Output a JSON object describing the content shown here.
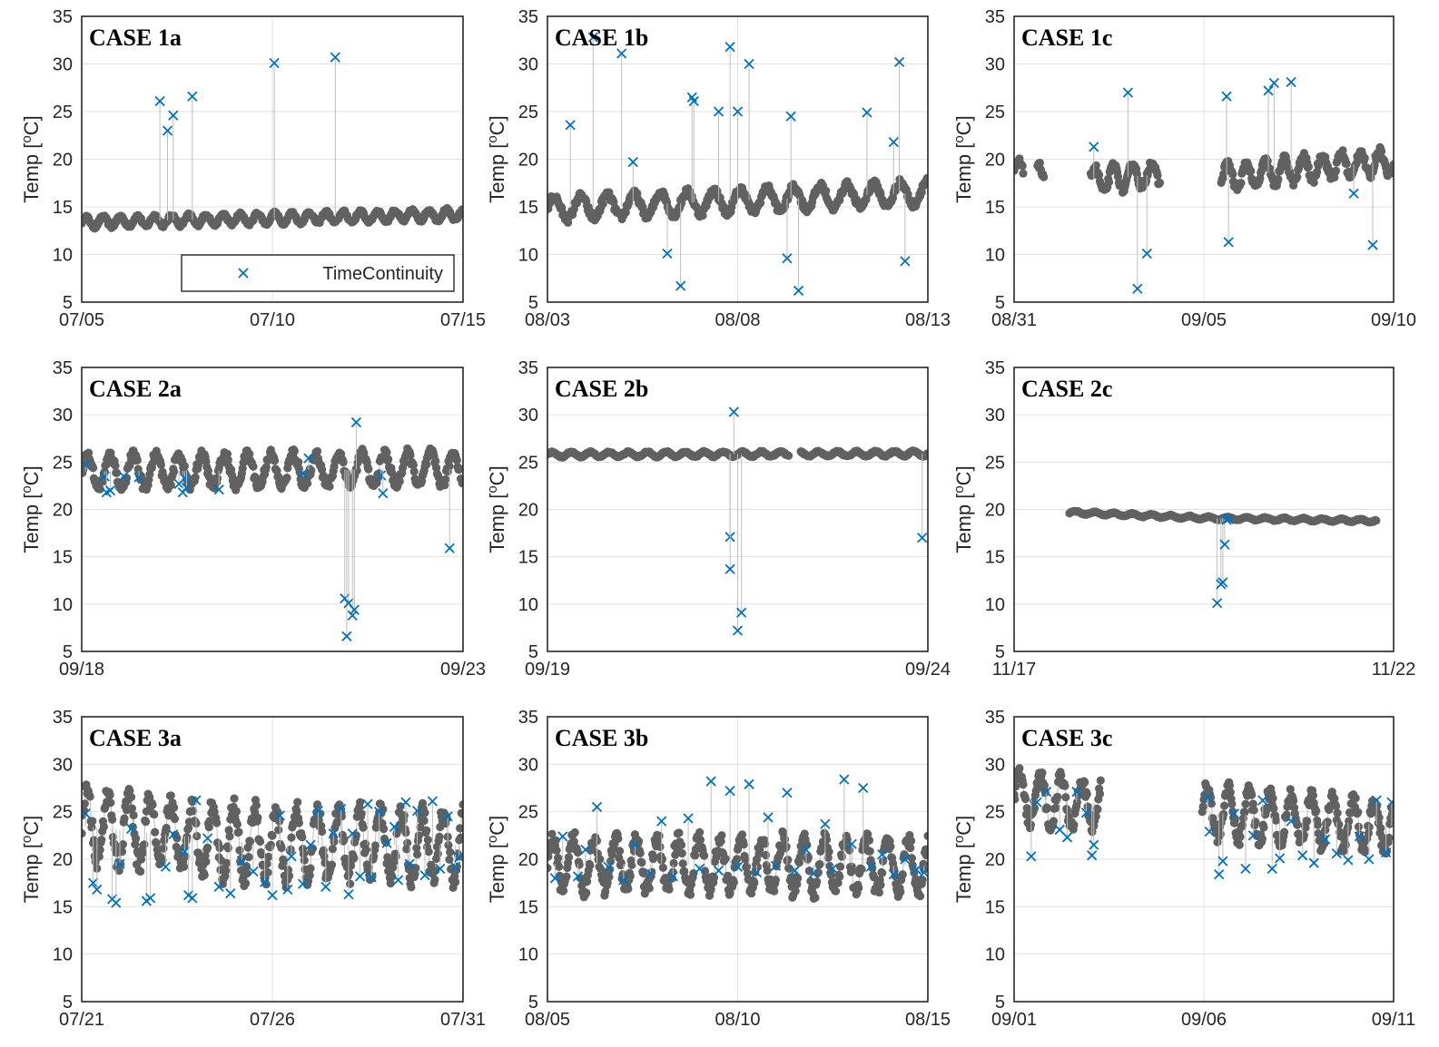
{
  "figure": {
    "ylabel_main": "Temp [",
    "ylabel_sup": "o",
    "ylabel_tail": "C]",
    "legend": {
      "label": "TimeContinuity",
      "marker": "×",
      "panel": "CASE 1a",
      "placement": "bottom-right"
    }
  },
  "colors": {
    "normal": "#616161",
    "flagged": "#0072bd",
    "grid": "#e1e1e1",
    "stem": "#bdbdbd"
  },
  "chart_data": [
    {
      "type": "scatter",
      "title": "CASE 1a",
      "ylabel": "Temp [oC]",
      "xticks": [
        "07/05",
        "07/10",
        "07/15"
      ],
      "xlim": [
        0,
        10
      ],
      "ylim": [
        5,
        35
      ],
      "yticks": [
        5,
        10,
        15,
        20,
        25,
        30,
        35
      ],
      "grid": true,
      "base": [
        [
          0,
          13.4
        ],
        [
          10,
          14.2
        ]
      ],
      "base_amp": 0.55,
      "base_period": 0.45,
      "gaps": [],
      "series": [
        {
          "name": "TimeContinuity",
          "points": [
            [
              2.05,
              26.1
            ],
            [
              2.25,
              23.0
            ],
            [
              2.4,
              24.6
            ],
            [
              2.9,
              26.6
            ],
            [
              5.05,
              30.1
            ],
            [
              6.65,
              30.7
            ]
          ]
        }
      ]
    },
    {
      "type": "scatter",
      "title": "CASE 1b",
      "ylabel": "Temp [oC]",
      "xticks": [
        "08/03",
        "08/08",
        "08/13"
      ],
      "xlim": [
        0,
        10
      ],
      "ylim": [
        5,
        35
      ],
      "yticks": [
        5,
        10,
        15,
        20,
        25,
        30,
        35
      ],
      "grid": true,
      "base": [
        [
          0,
          14.8
        ],
        [
          10,
          16.5
        ]
      ],
      "base_amp": 1.2,
      "base_period": 0.7,
      "gaps": [],
      "series": [
        {
          "name": "TimeContinuity",
          "points": [
            [
              0.6,
              23.6
            ],
            [
              1.2,
              32.8
            ],
            [
              1.95,
              31.1
            ],
            [
              2.25,
              19.7
            ],
            [
              3.15,
              10.1
            ],
            [
              3.5,
              6.7
            ],
            [
              3.8,
              26.5
            ],
            [
              3.85,
              26.1
            ],
            [
              4.5,
              25.0
            ],
            [
              4.8,
              31.8
            ],
            [
              5.0,
              25.0
            ],
            [
              5.3,
              30.0
            ],
            [
              6.3,
              9.6
            ],
            [
              6.4,
              24.5
            ],
            [
              6.6,
              6.2
            ],
            [
              8.4,
              24.9
            ],
            [
              9.1,
              21.8
            ],
            [
              9.25,
              30.2
            ],
            [
              9.4,
              9.3
            ]
          ]
        }
      ]
    },
    {
      "type": "scatter",
      "title": "CASE 1c",
      "ylabel": "Temp [oC]",
      "xticks": [
        "08/31",
        "09/05",
        "09/10"
      ],
      "xlim": [
        0,
        10
      ],
      "ylim": [
        5,
        35
      ],
      "yticks": [
        5,
        10,
        15,
        20,
        25,
        30,
        35
      ],
      "grid": true,
      "base": [
        [
          0,
          18.5
        ],
        [
          2,
          17.8
        ],
        [
          4,
          18.5
        ],
        [
          6,
          18.2
        ],
        [
          8,
          19.2
        ],
        [
          10,
          19.8
        ]
      ],
      "base_amp": 1.3,
      "base_period": 0.5,
      "gaps": [
        [
          0.25,
          0.6
        ],
        [
          0.8,
          2.0
        ],
        [
          3.85,
          5.45
        ]
      ],
      "series": [
        {
          "name": "TimeContinuity",
          "points": [
            [
              2.1,
              21.3
            ],
            [
              3.0,
              27.0
            ],
            [
              3.25,
              6.4
            ],
            [
              3.5,
              10.1
            ],
            [
              5.6,
              26.6
            ],
            [
              5.65,
              11.3
            ],
            [
              6.7,
              27.2
            ],
            [
              6.85,
              28.0
            ],
            [
              7.3,
              28.1
            ],
            [
              8.95,
              16.4
            ],
            [
              9.45,
              11.0
            ]
          ]
        }
      ]
    },
    {
      "type": "scatter",
      "title": "CASE 2a",
      "ylabel": "Temp [oC]",
      "xticks": [
        "09/18",
        "09/23"
      ],
      "xlim": [
        0,
        10
      ],
      "ylim": [
        5,
        35
      ],
      "yticks": [
        5,
        10,
        15,
        20,
        25,
        30,
        35
      ],
      "grid": true,
      "base": [
        [
          0,
          24.0
        ],
        [
          10,
          24.3
        ]
      ],
      "base_amp": 1.7,
      "base_period": 0.6,
      "gaps": [],
      "series": [
        {
          "name": "TimeContinuity",
          "points": [
            [
              0.1,
              24.7
            ],
            [
              0.6,
              23.5
            ],
            [
              0.65,
              21.8
            ],
            [
              0.75,
              22.0
            ],
            [
              1.1,
              23.5
            ],
            [
              1.5,
              23.4
            ],
            [
              2.55,
              22.7
            ],
            [
              2.65,
              21.8
            ],
            [
              2.7,
              23.3
            ],
            [
              2.75,
              22.3
            ],
            [
              3.6,
              22.1
            ],
            [
              5.8,
              23.8
            ],
            [
              5.95,
              25.4
            ],
            [
              6.9,
              10.6
            ],
            [
              6.95,
              6.6
            ],
            [
              7.0,
              10.1
            ],
            [
              7.1,
              8.8
            ],
            [
              7.15,
              9.4
            ],
            [
              7.2,
              29.2
            ],
            [
              7.85,
              23.6
            ],
            [
              7.9,
              21.7
            ],
            [
              9.65,
              15.9
            ]
          ]
        }
      ]
    },
    {
      "type": "scatter",
      "title": "CASE 2b",
      "ylabel": "Temp [oC]",
      "xticks": [
        "09/19",
        "09/24"
      ],
      "xlim": [
        0,
        10
      ],
      "ylim": [
        5,
        35
      ],
      "yticks": [
        5,
        10,
        15,
        20,
        25,
        30,
        35
      ],
      "grid": true,
      "base": [
        [
          0,
          25.8
        ],
        [
          10,
          25.9
        ]
      ],
      "base_amp": 0.25,
      "base_period": 0.5,
      "gaps": [
        [
          6.35,
          6.65
        ]
      ],
      "series": [
        {
          "name": "TimeContinuity",
          "points": [
            [
              4.8,
              17.1
            ],
            [
              4.8,
              13.7
            ],
            [
              4.9,
              30.3
            ],
            [
              5.0,
              7.2
            ],
            [
              5.1,
              9.1
            ],
            [
              9.85,
              17.0
            ]
          ]
        }
      ]
    },
    {
      "type": "scatter",
      "title": "CASE 2c",
      "ylabel": "Temp [oC]",
      "xticks": [
        "11/17",
        "11/22"
      ],
      "xlim": [
        0,
        10
      ],
      "ylim": [
        5,
        35
      ],
      "yticks": [
        5,
        10,
        15,
        20,
        25,
        30,
        35
      ],
      "grid": true,
      "base": [
        [
          1.45,
          19.7
        ],
        [
          5.0,
          19.1
        ],
        [
          9.5,
          18.8
        ]
      ],
      "base_amp": 0.15,
      "base_period": 0.5,
      "gaps": [
        [
          0,
          1.45
        ],
        [
          9.55,
          10
        ]
      ],
      "series": [
        {
          "name": "TimeContinuity",
          "points": [
            [
              5.35,
              10.1
            ],
            [
              5.45,
              12.1
            ],
            [
              5.5,
              12.3
            ],
            [
              5.55,
              16.3
            ],
            [
              5.6,
              18.9
            ],
            [
              5.65,
              19.0
            ]
          ]
        }
      ]
    },
    {
      "type": "scatter",
      "title": "CASE 3a",
      "ylabel": "Temp [oC]",
      "xticks": [
        "07/21",
        "07/26",
        "07/31"
      ],
      "xlim": [
        0,
        10
      ],
      "ylim": [
        5,
        35
      ],
      "yticks": [
        5,
        10,
        15,
        20,
        25,
        30,
        35
      ],
      "grid": true,
      "base": [
        [
          0,
          23.5
        ],
        [
          5,
          21.5
        ],
        [
          10,
          21.5
        ]
      ],
      "base_amp": 3.6,
      "base_period": 0.55,
      "gaps": [],
      "series": [
        {
          "name": "TimeContinuity",
          "points": [
            [
              0.1,
              24.8
            ],
            [
              0.3,
              17.5
            ],
            [
              0.4,
              16.8
            ],
            [
              0.8,
              15.8
            ],
            [
              0.9,
              15.4
            ],
            [
              1.0,
              19.5
            ],
            [
              1.3,
              23.2
            ],
            [
              1.7,
              15.6
            ],
            [
              1.8,
              15.9
            ],
            [
              2.2,
              19.2
            ],
            [
              2.4,
              22.6
            ],
            [
              2.7,
              20.8
            ],
            [
              2.8,
              16.2
            ],
            [
              2.9,
              15.9
            ],
            [
              3.0,
              26.2
            ],
            [
              3.3,
              22.2
            ],
            [
              3.6,
              17.1
            ],
            [
              3.9,
              16.4
            ],
            [
              4.2,
              19.8
            ],
            [
              4.5,
              18.7
            ],
            [
              4.8,
              17.6
            ],
            [
              5.0,
              16.2
            ],
            [
              5.2,
              24.6
            ],
            [
              5.4,
              16.8
            ],
            [
              5.5,
              20.3
            ],
            [
              5.8,
              17.4
            ],
            [
              6.0,
              21.5
            ],
            [
              6.2,
              25.1
            ],
            [
              6.4,
              17.1
            ],
            [
              6.6,
              22.7
            ],
            [
              6.8,
              25.3
            ],
            [
              7.0,
              16.3
            ],
            [
              7.1,
              22.7
            ],
            [
              7.3,
              18.2
            ],
            [
              7.5,
              25.8
            ],
            [
              7.6,
              18.1
            ],
            [
              7.8,
              25.0
            ],
            [
              8.0,
              21.7
            ],
            [
              8.2,
              23.4
            ],
            [
              8.3,
              17.8
            ],
            [
              8.5,
              26.0
            ],
            [
              8.6,
              19.5
            ],
            [
              8.8,
              25.1
            ],
            [
              9.0,
              18.3
            ],
            [
              9.2,
              26.1
            ],
            [
              9.4,
              19.0
            ],
            [
              9.6,
              24.5
            ],
            [
              9.8,
              19.2
            ],
            [
              9.9,
              20.2
            ]
          ]
        }
      ]
    },
    {
      "type": "scatter",
      "title": "CASE 3b",
      "ylabel": "Temp [oC]",
      "xticks": [
        "08/05",
        "08/10",
        "08/15"
      ],
      "xlim": [
        0,
        10
      ],
      "ylim": [
        5,
        35
      ],
      "yticks": [
        5,
        10,
        15,
        20,
        25,
        30,
        35
      ],
      "grid": true,
      "base": [
        [
          0,
          19.5
        ],
        [
          10,
          19.3
        ]
      ],
      "base_amp": 2.8,
      "base_period": 0.55,
      "gaps": [],
      "series": [
        {
          "name": "TimeContinuity",
          "points": [
            [
              0.2,
              18.0
            ],
            [
              0.4,
              22.4
            ],
            [
              0.8,
              18.2
            ],
            [
              1.0,
              21.0
            ],
            [
              1.3,
              25.5
            ],
            [
              1.6,
              19.2
            ],
            [
              2.0,
              17.8
            ],
            [
              2.3,
              21.5
            ],
            [
              2.7,
              18.5
            ],
            [
              3.0,
              24.0
            ],
            [
              3.3,
              18.2
            ],
            [
              3.7,
              24.3
            ],
            [
              4.0,
              19.0
            ],
            [
              4.3,
              28.2
            ],
            [
              4.5,
              18.8
            ],
            [
              4.8,
              27.2
            ],
            [
              5.0,
              19.2
            ],
            [
              5.3,
              27.9
            ],
            [
              5.5,
              18.6
            ],
            [
              5.8,
              24.4
            ],
            [
              6.0,
              19.3
            ],
            [
              6.3,
              27.0
            ],
            [
              6.5,
              18.8
            ],
            [
              6.8,
              21.0
            ],
            [
              7.0,
              18.5
            ],
            [
              7.3,
              23.7
            ],
            [
              7.5,
              19.0
            ],
            [
              7.8,
              28.4
            ],
            [
              8.0,
              21.6
            ],
            [
              8.3,
              27.5
            ],
            [
              8.5,
              19.2
            ],
            [
              8.8,
              20.5
            ],
            [
              9.1,
              18.4
            ],
            [
              9.4,
              20.0
            ],
            [
              9.7,
              18.9
            ],
            [
              9.9,
              18.6
            ]
          ]
        }
      ]
    },
    {
      "type": "scatter",
      "title": "CASE 3c",
      "ylabel": "Temp [oC]",
      "xticks": [
        "09/01",
        "09/06",
        "09/11"
      ],
      "xlim": [
        0,
        10
      ],
      "ylim": [
        5,
        35
      ],
      "yticks": [
        5,
        10,
        15,
        20,
        25,
        30,
        35
      ],
      "grid": true,
      "base": [
        [
          0,
          26.5
        ],
        [
          10,
          23.5
        ]
      ],
      "base_amp": 2.6,
      "base_period": 0.55,
      "gaps": [
        [
          2.3,
          4.95
        ]
      ],
      "series": [
        {
          "name": "TimeContinuity",
          "points": [
            [
              0.45,
              20.3
            ],
            [
              0.6,
              26.0
            ],
            [
              0.85,
              27.1
            ],
            [
              1.2,
              23.1
            ],
            [
              1.4,
              22.3
            ],
            [
              1.65,
              27.1
            ],
            [
              1.9,
              24.9
            ],
            [
              2.05,
              20.4
            ],
            [
              2.1,
              21.5
            ],
            [
              5.1,
              26.5
            ],
            [
              5.15,
              22.9
            ],
            [
              5.4,
              18.4
            ],
            [
              5.5,
              19.8
            ],
            [
              5.8,
              24.8
            ],
            [
              6.1,
              19.0
            ],
            [
              6.3,
              22.5
            ],
            [
              6.55,
              26.2
            ],
            [
              6.8,
              19.0
            ],
            [
              7.0,
              20.1
            ],
            [
              7.3,
              24.0
            ],
            [
              7.6,
              20.4
            ],
            [
              7.9,
              19.6
            ],
            [
              8.2,
              22.1
            ],
            [
              8.5,
              20.6
            ],
            [
              8.8,
              19.9
            ],
            [
              9.1,
              22.4
            ],
            [
              9.35,
              20.0
            ],
            [
              9.55,
              26.2
            ],
            [
              9.8,
              20.7
            ],
            [
              9.95,
              26.0
            ]
          ]
        }
      ]
    }
  ]
}
